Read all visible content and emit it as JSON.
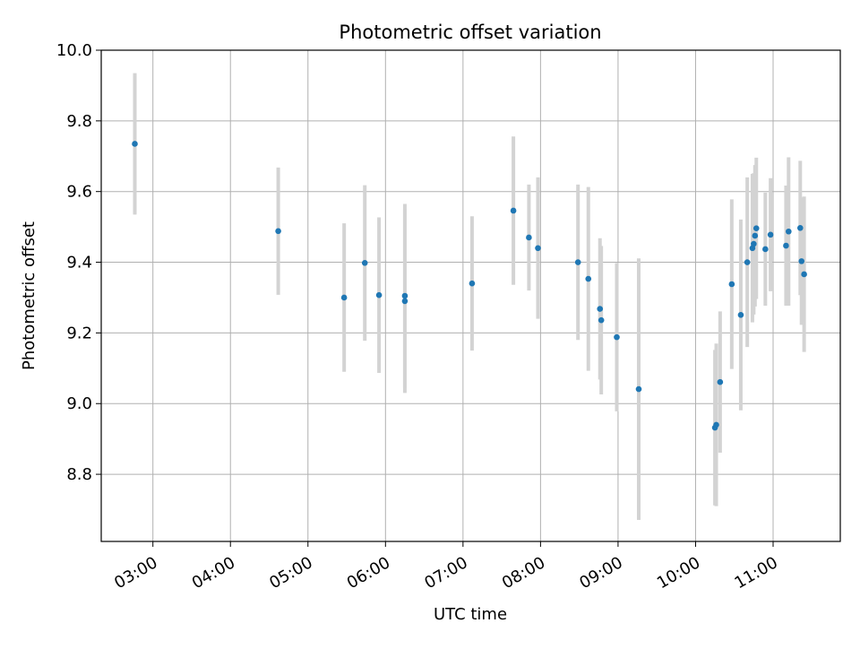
{
  "chart_data": {
    "type": "scatter",
    "title": "Photometric offset variation",
    "xlabel": "UTC time",
    "ylabel": "Photometric offset",
    "xlim": [
      "02:20",
      "11:52"
    ],
    "ylim": [
      8.61,
      10.0
    ],
    "x_ticks": [
      "03:00",
      "04:00",
      "05:00",
      "06:00",
      "07:00",
      "08:00",
      "09:00",
      "10:00",
      "11:00"
    ],
    "y_ticks": [
      "8.8",
      "9.0",
      "9.2",
      "9.4",
      "9.6",
      "9.8",
      "10.0"
    ],
    "grid": true,
    "colors": {
      "point": "#1f77b4",
      "errorbar": "#d3d3d3",
      "grid": "#b0b0b0"
    },
    "points": [
      {
        "x": "02:46",
        "y": 9.735,
        "yerr": 0.2
      },
      {
        "x": "04:37",
        "y": 9.488,
        "yerr": 0.18
      },
      {
        "x": "05:28",
        "y": 9.3,
        "yerr": 0.21
      },
      {
        "x": "05:44",
        "y": 9.398,
        "yerr": 0.22
      },
      {
        "x": "05:55",
        "y": 9.307,
        "yerr": 0.22
      },
      {
        "x": "06:15",
        "y": 9.305,
        "yerr": 0.26
      },
      {
        "x": "06:15",
        "y": 9.29,
        "yerr": 0.26
      },
      {
        "x": "07:07",
        "y": 9.34,
        "yerr": 0.19
      },
      {
        "x": "07:39",
        "y": 9.546,
        "yerr": 0.21
      },
      {
        "x": "07:51",
        "y": 9.47,
        "yerr": 0.15
      },
      {
        "x": "07:58",
        "y": 9.44,
        "yerr": 0.2
      },
      {
        "x": "08:29",
        "y": 9.4,
        "yerr": 0.22
      },
      {
        "x": "08:37",
        "y": 9.353,
        "yerr": 0.26
      },
      {
        "x": "08:46",
        "y": 9.268,
        "yerr": 0.2
      },
      {
        "x": "08:47",
        "y": 9.236,
        "yerr": 0.21
      },
      {
        "x": "08:59",
        "y": 9.188,
        "yerr": 0.21
      },
      {
        "x": "09:16",
        "y": 9.041,
        "yerr": 0.37
      },
      {
        "x": "10:15",
        "y": 8.932,
        "yerr": 0.22
      },
      {
        "x": "10:16",
        "y": 8.94,
        "yerr": 0.23
      },
      {
        "x": "10:19",
        "y": 9.061,
        "yerr": 0.2
      },
      {
        "x": "10:28",
        "y": 9.338,
        "yerr": 0.24
      },
      {
        "x": "10:35",
        "y": 9.251,
        "yerr": 0.27
      },
      {
        "x": "10:40",
        "y": 9.4,
        "yerr": 0.24
      },
      {
        "x": "10:44",
        "y": 9.44,
        "yerr": 0.21
      },
      {
        "x": "10:45",
        "y": 9.452,
        "yerr": 0.2
      },
      {
        "x": "10:46",
        "y": 9.475,
        "yerr": 0.2
      },
      {
        "x": "10:47",
        "y": 9.496,
        "yerr": 0.2
      },
      {
        "x": "10:54",
        "y": 9.437,
        "yerr": 0.16
      },
      {
        "x": "10:58",
        "y": 9.478,
        "yerr": 0.16
      },
      {
        "x": "11:10",
        "y": 9.447,
        "yerr": 0.17
      },
      {
        "x": "11:12",
        "y": 9.487,
        "yerr": 0.21
      },
      {
        "x": "11:21",
        "y": 9.497,
        "yerr": 0.19
      },
      {
        "x": "11:22",
        "y": 9.403,
        "yerr": 0.18
      },
      {
        "x": "11:24",
        "y": 9.366,
        "yerr": 0.22
      }
    ]
  }
}
